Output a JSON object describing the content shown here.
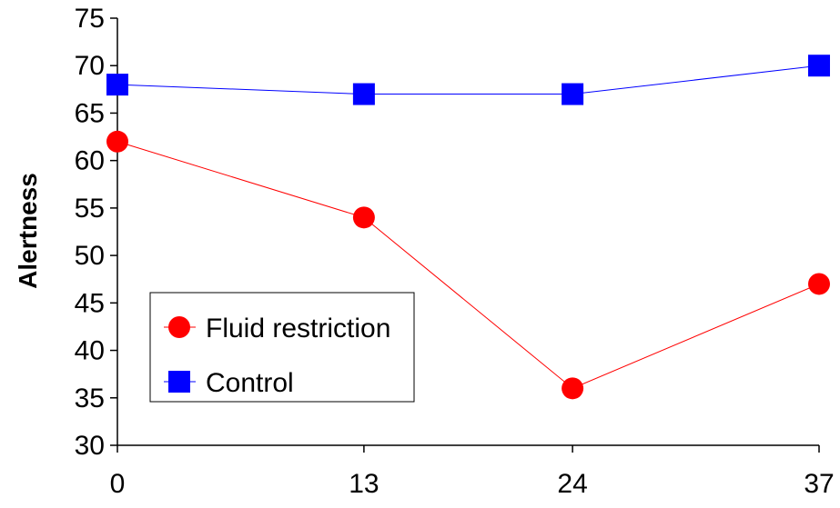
{
  "chart_data": {
    "type": "line",
    "title": "",
    "xlabel": "",
    "ylabel": "Alertness",
    "x": [
      0,
      13,
      24,
      37
    ],
    "x_ticks": [
      "0",
      "13",
      "24",
      "37"
    ],
    "ylim": [
      30,
      75
    ],
    "y_ticks": [
      "30",
      "35",
      "40",
      "45",
      "50",
      "55",
      "60",
      "65",
      "70",
      "75"
    ],
    "grid": false,
    "legend_position": "bottom-left",
    "series": [
      {
        "name": "Fluid restriction",
        "values": [
          62,
          54,
          36,
          47
        ],
        "color": "#ff0000",
        "marker": "circle"
      },
      {
        "name": "Control",
        "values": [
          68,
          67,
          67,
          70
        ],
        "color": "#0000ff",
        "marker": "square"
      }
    ]
  }
}
